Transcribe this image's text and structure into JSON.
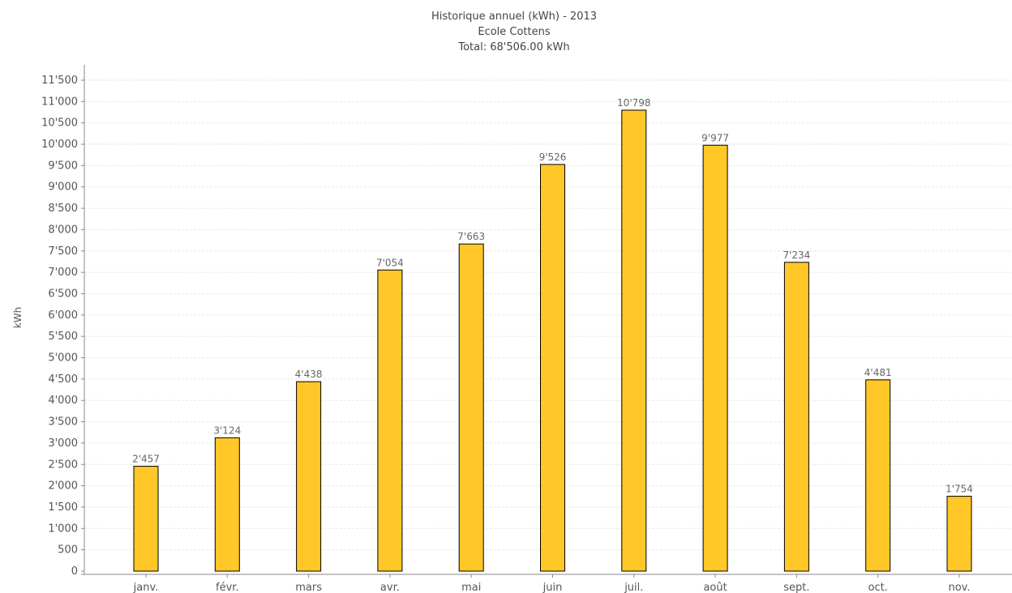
{
  "chart_data": {
    "type": "bar",
    "title": "Historique annuel (kWh) - 2013",
    "subtitle": "Ecole Cottens",
    "total_label": "Total: 68'506.00 kWh",
    "xlabel": "",
    "ylabel": "kWh",
    "categories": [
      "janv.",
      "févr.",
      "mars",
      "avr.",
      "mai",
      "juin",
      "juil.",
      "août",
      "sept.",
      "oct.",
      "nov."
    ],
    "values": [
      2457,
      3124,
      4438,
      7054,
      7663,
      9526,
      10798,
      9977,
      7234,
      4481,
      1754
    ],
    "value_labels": [
      "2'457",
      "3'124",
      "4'438",
      "7'054",
      "7'663",
      "9'526",
      "10'798",
      "9'977",
      "7'234",
      "4'481",
      "1'754"
    ],
    "ylim": [
      0,
      11500
    ],
    "y_ticks": [
      0,
      500,
      1000,
      1500,
      2000,
      2500,
      3000,
      3500,
      4000,
      4500,
      5000,
      5500,
      6000,
      6500,
      7000,
      7500,
      8000,
      8500,
      9000,
      9500,
      10000,
      10500,
      11000,
      11500
    ],
    "y_tick_labels": [
      "0",
      "500",
      "1'000",
      "1'500",
      "2'000",
      "2'500",
      "3'000",
      "3'500",
      "4'000",
      "4'500",
      "5'000",
      "5'500",
      "6'000",
      "6'500",
      "7'000",
      "7'500",
      "8'000",
      "8'500",
      "9'000",
      "9'500",
      "10'000",
      "10'500",
      "11'000",
      "11'500"
    ],
    "grid": true,
    "legend": "none",
    "colors": {
      "bar_fill": "#FFC727",
      "bar_stroke": "#000000",
      "grid": "#E6E6E6",
      "axis": "#888888"
    }
  }
}
